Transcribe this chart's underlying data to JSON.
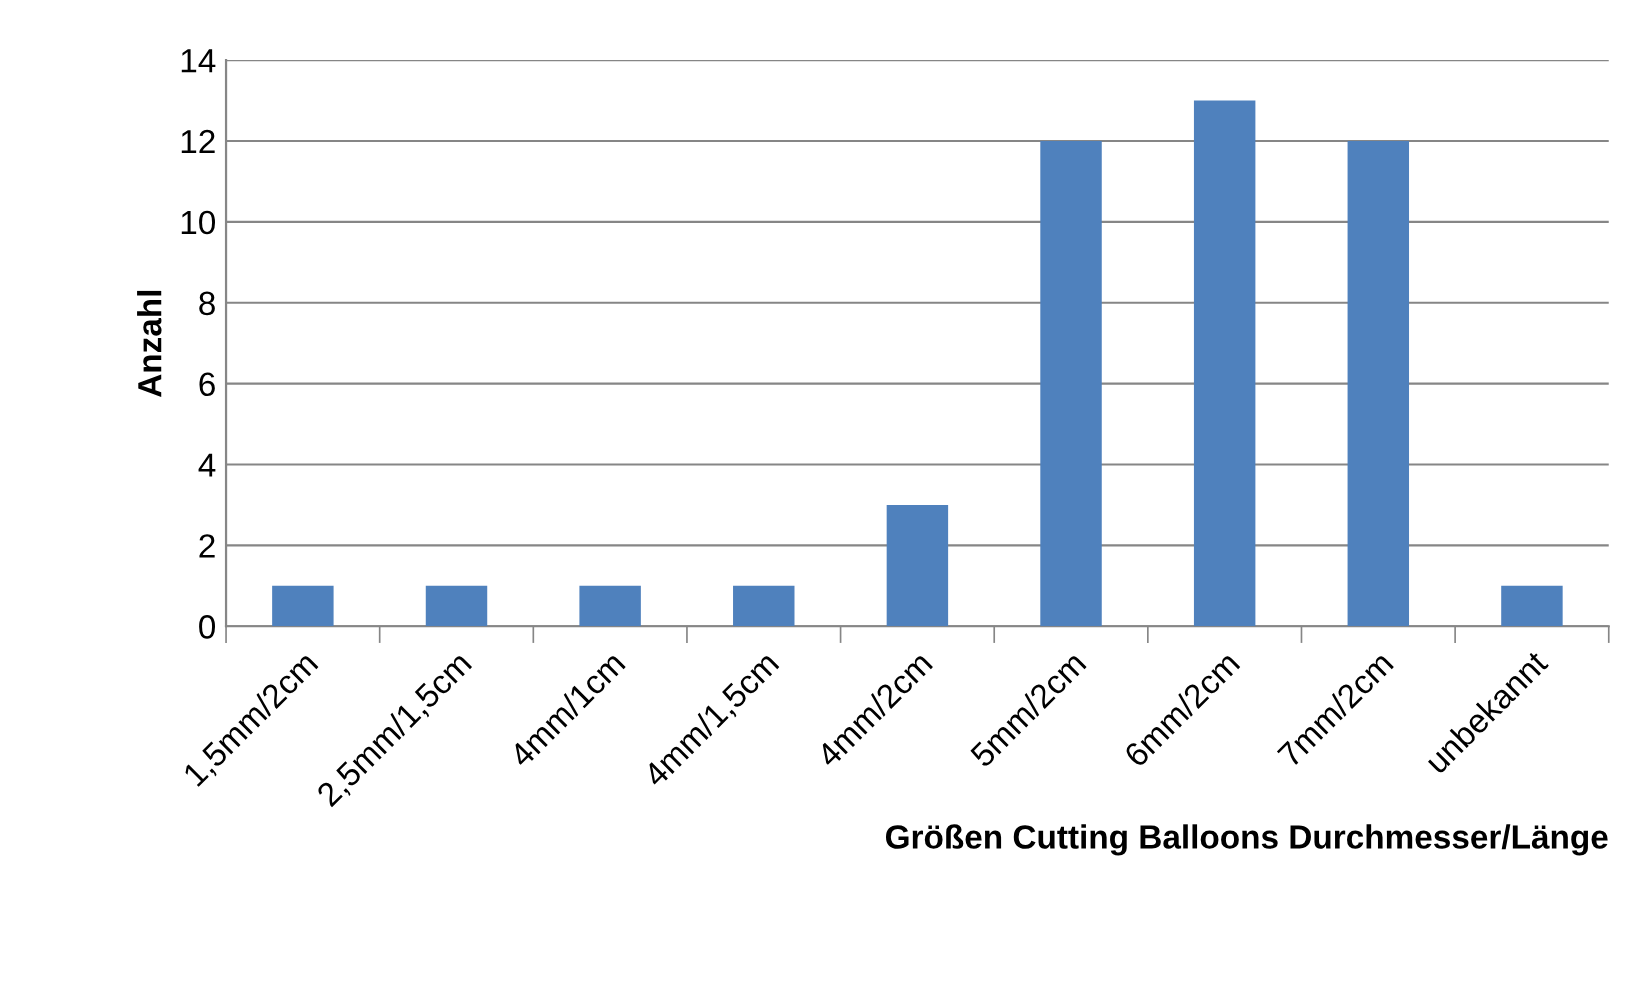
{
  "chart_data": {
    "type": "bar",
    "xlabel": "Größen Cutting Balloons Durchmesser/Länge",
    "ylabel": "Anzahl",
    "categories": [
      "1,5mm/2cm",
      "2,5mm/1,5cm",
      "4mm/1cm",
      "4mm/1,5cm",
      "4mm/2cm",
      "5mm/2cm",
      "6mm/2cm",
      "7mm/2cm",
      "unbekannt"
    ],
    "values": [
      1,
      1,
      1,
      1,
      3,
      12,
      13,
      12,
      1
    ],
    "color": "#4f81bd",
    "ylim": [
      0,
      14
    ],
    "yticks": [
      0,
      2,
      4,
      6,
      8,
      10,
      12,
      14
    ],
    "grid": "y"
  }
}
